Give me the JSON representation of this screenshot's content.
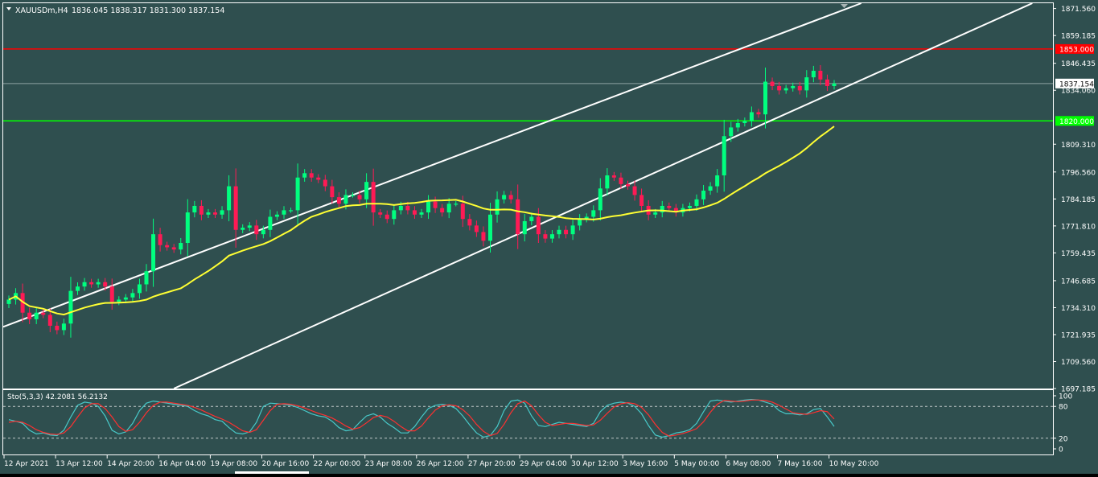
{
  "header": {
    "symbol": "XAUUSDm,H4",
    "ohlc": "1836.045 1838.317 1831.300 1837.154"
  },
  "colors": {
    "background": "#2f4f4f",
    "bull": "#00ff7f",
    "bear": "#ff1a55",
    "ma": "#ffff33",
    "channel": "#ffffff",
    "resistance": "#ff0000",
    "support": "#00ff00",
    "stoch_main": "#48c9c9",
    "stoch_signal": "#ff3030"
  },
  "chart_data": [
    {
      "type": "candlestick",
      "ylim": [
        1697.2,
        1874.0
      ],
      "y_ticks": [
        "1871.560",
        "1859.185",
        "1846.435",
        "1834.060",
        "1809.310",
        "1796.560",
        "1784.185",
        "1771.810",
        "1759.435",
        "1746.685",
        "1734.310",
        "1721.935",
        "1709.560",
        "1697.185"
      ],
      "x_ticks": [
        "12 Apr 2021",
        "13 Apr 12:00",
        "14 Apr 20:00",
        "16 Apr 04:00",
        "19 Apr 08:00",
        "20 Apr 16:00",
        "22 Apr 00:00",
        "23 Apr 08:00",
        "26 Apr 12:00",
        "27 Apr 20:00",
        "29 Apr 04:00",
        "30 Apr 12:00",
        "3 May 16:00",
        "5 May 00:00",
        "6 May 08:00",
        "7 May 16:00",
        "10 May 20:00"
      ],
      "close_series": [
        1738,
        1741,
        1732,
        1729,
        1732,
        1731,
        1726,
        1724,
        1727,
        1742,
        1744,
        1746,
        1745,
        1746,
        1744,
        1737,
        1738,
        1739,
        1741,
        1745,
        1751,
        1768,
        1763,
        1762,
        1761,
        1764,
        1778,
        1781,
        1777,
        1778,
        1777,
        1779,
        1790,
        1770,
        1771,
        1772,
        1768,
        1770,
        1776,
        1777,
        1779,
        1779,
        1794,
        1796,
        1794,
        1793,
        1790,
        1785,
        1782,
        1786,
        1786,
        1784,
        1792,
        1778,
        1777,
        1775,
        1779,
        1781,
        1779,
        1777,
        1778,
        1783,
        1780,
        1778,
        1782,
        1782,
        1775,
        1772,
        1769,
        1765,
        1777,
        1784,
        1786,
        1784,
        1768,
        1774,
        1776,
        1768,
        1766,
        1768,
        1770,
        1768,
        1772,
        1775,
        1776,
        1779,
        1789,
        1795,
        1794,
        1791,
        1790,
        1786,
        1781,
        1777,
        1778,
        1781,
        1780,
        1778,
        1780,
        1781,
        1784,
        1788,
        1790,
        1795,
        1813,
        1817,
        1819,
        1820,
        1824,
        1823,
        1838,
        1836,
        1834,
        1835,
        1836,
        1834,
        1840,
        1843,
        1839,
        1836,
        1837.154
      ],
      "current_price": "1837.154",
      "levels": [
        {
          "label": "1853.000",
          "value": 1853.0,
          "color": "#ff0000"
        },
        {
          "label": "1820.000",
          "value": 1820.0,
          "color": "#00ff00"
        }
      ],
      "channel": {
        "upper": [
          [
            0,
            1726.5
          ],
          [
            121,
            1870.5
          ]
        ],
        "lower": [
          [
            0,
            1663.2
          ],
          [
            121,
            1834.6
          ]
        ]
      },
      "moving_average": {
        "period": 24,
        "color": "#ffff33"
      }
    },
    {
      "type": "line",
      "title": "Sto(5,3,3) 42.2081 56.2132",
      "ylim": [
        0,
        100
      ],
      "y_ticks": [
        "100",
        "80",
        "20",
        "0"
      ],
      "levels": [
        80,
        20
      ],
      "series": [
        {
          "name": "main",
          "values": [
            55,
            52,
            48,
            35,
            28,
            30,
            26,
            25,
            35,
            60,
            82,
            88,
            86,
            80,
            62,
            35,
            28,
            32,
            48,
            72,
            86,
            90,
            88,
            86,
            84,
            82,
            80,
            72,
            66,
            62,
            55,
            52,
            40,
            30,
            28,
            32,
            50,
            80,
            86,
            85,
            84,
            82,
            78,
            72,
            66,
            62,
            60,
            52,
            40,
            34,
            36,
            50,
            62,
            66,
            60,
            48,
            40,
            30,
            30,
            42,
            60,
            76,
            82,
            84,
            82,
            76,
            62,
            45,
            30,
            22,
            25,
            42,
            72,
            90,
            92,
            86,
            62,
            44,
            42,
            46,
            50,
            48,
            46,
            44,
            42,
            48,
            70,
            82,
            86,
            88,
            86,
            80,
            66,
            44,
            26,
            22,
            25,
            30,
            32,
            36,
            48,
            70,
            90,
            92,
            90,
            88,
            90,
            92,
            93,
            92,
            88,
            84,
            72,
            66,
            66,
            64,
            66,
            74,
            76,
            60,
            42.2
          ]
        },
        {
          "name": "signal",
          "values": [
            50,
            52,
            50,
            44,
            36,
            31,
            28,
            27,
            30,
            42,
            60,
            77,
            85,
            85,
            76,
            60,
            42,
            33,
            36,
            50,
            68,
            82,
            88,
            88,
            86,
            84,
            82,
            78,
            73,
            67,
            61,
            56,
            50,
            42,
            34,
            31,
            36,
            54,
            72,
            84,
            85,
            84,
            81,
            77,
            72,
            67,
            63,
            58,
            51,
            43,
            37,
            40,
            49,
            59,
            63,
            60,
            52,
            42,
            34,
            34,
            43,
            59,
            73,
            81,
            83,
            81,
            74,
            62,
            46,
            33,
            25,
            29,
            46,
            68,
            85,
            90,
            81,
            64,
            50,
            44,
            46,
            48,
            48,
            46,
            44,
            45,
            54,
            67,
            79,
            85,
            87,
            85,
            78,
            64,
            46,
            31,
            24,
            26,
            29,
            33,
            38,
            51,
            69,
            84,
            91,
            90,
            89,
            90,
            92,
            92,
            91,
            88,
            82,
            75,
            68,
            66,
            65,
            68,
            72,
            70,
            56.2
          ]
        }
      ]
    }
  ]
}
